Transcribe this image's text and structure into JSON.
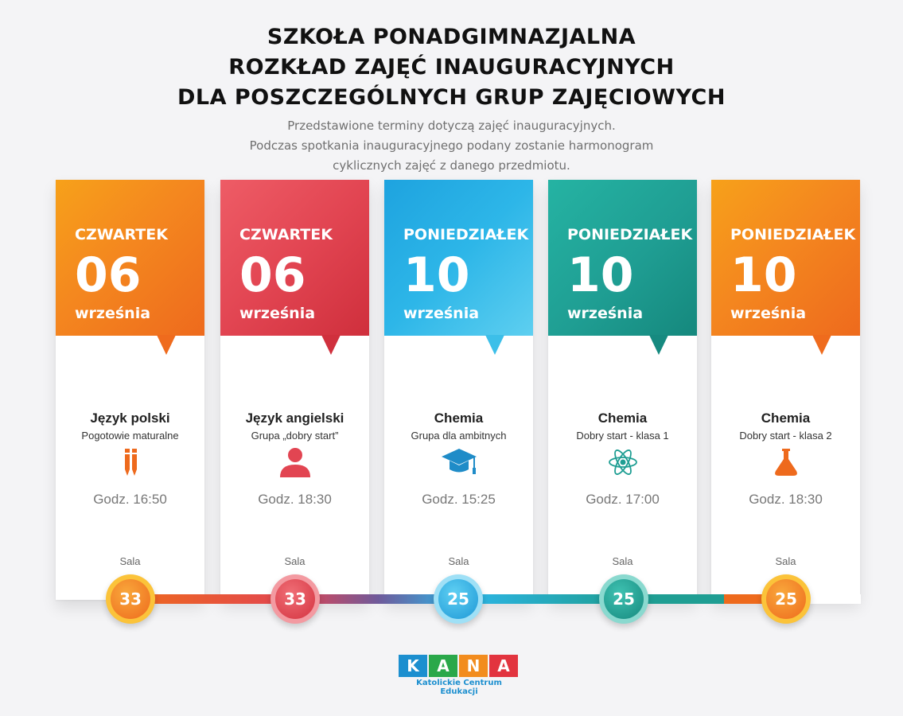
{
  "header": {
    "title_lines": [
      "SZKOŁA PONADGIMNAZJALNA",
      "ROZKŁAD ZAJĘĆ INAUGURACYJNYCH",
      "DLA POSZCZEGÓLNYCH GRUP ZAJĘCIOWYCH"
    ],
    "subtitle_lines": [
      "Przedstawione terminy dotyczą zajęć inauguracyjnych.",
      "Podczas spotkania inauguracyjnego podany zostanie harmonogram",
      "cyklicznych zajęć z danego przedmiotu."
    ]
  },
  "cards": [
    {
      "day": "CZWARTEK",
      "date": "06",
      "month": "września",
      "subject": "Język polski",
      "group": "Pogotowie maturalne",
      "icon": "pencils-icon",
      "time": "Godz. 16:50",
      "room_label": "Sala",
      "room": "33",
      "color": "#f4871f"
    },
    {
      "day": "CZWARTEK",
      "date": "06",
      "month": "września",
      "subject": "Język angielski",
      "group": "Grupa „dobry start”",
      "icon": "person-icon",
      "time": "Godz. 18:30",
      "room_label": "Sala",
      "room": "33",
      "color": "#e24552"
    },
    {
      "day": "PONIEDZIAŁEK",
      "date": "10",
      "month": "września",
      "subject": "Chemia",
      "group": "Grupa dla ambitnych",
      "icon": "graduation-cap-icon",
      "time": "Godz. 15:25",
      "room_label": "Sala",
      "room": "25",
      "color": "#2db6e8"
    },
    {
      "day": "PONIEDZIAŁEK",
      "date": "10",
      "month": "września",
      "subject": "Chemia",
      "group": "Dobry start - klasa 1",
      "icon": "atom-icon",
      "time": "Godz. 17:00",
      "room_label": "Sala",
      "room": "25",
      "color": "#1f9e93"
    },
    {
      "day": "PONIEDZIAŁEK",
      "date": "10",
      "month": "września",
      "subject": "Chemia",
      "group": "Dobry start - klasa 2",
      "icon": "flask-icon",
      "time": "Godz. 18:30",
      "room_label": "Sala",
      "room": "25",
      "color": "#f4871f"
    }
  ],
  "logo": {
    "letters": [
      "K",
      "A",
      "N",
      "A"
    ],
    "letter_colors": [
      "#1c8fcf",
      "#2aa84a",
      "#f28c1e",
      "#e2343f"
    ],
    "tagline": "Katolickie Centrum Edukacji"
  }
}
